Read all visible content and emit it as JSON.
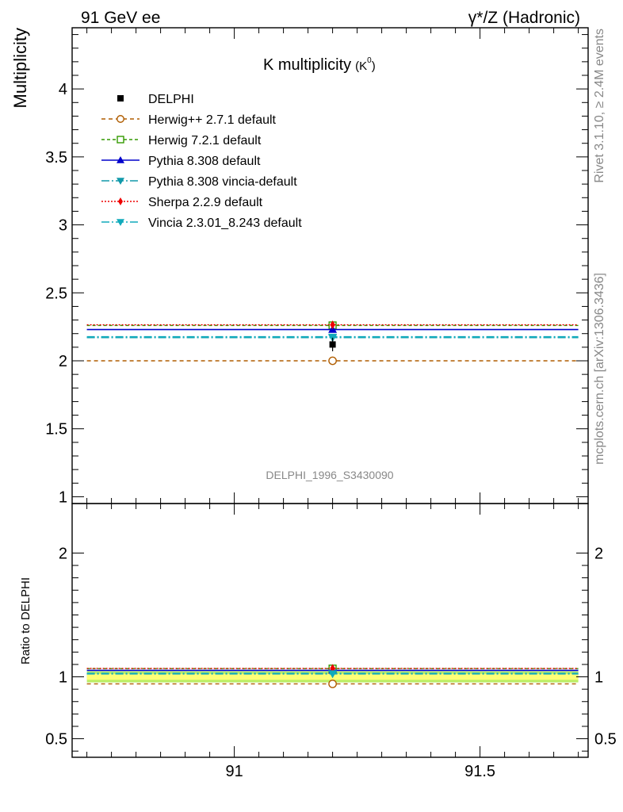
{
  "header": {
    "left": "91 GeV ee",
    "right": "γ*/Z (Hadronic)"
  },
  "side_labels": {
    "rivet": "Rivet 3.1.10, ≥ 2.4M events",
    "mcplots": "mcplots.cern.ch [arXiv:1306.3436]"
  },
  "chart_data": {
    "type": "line",
    "title_main": "K multiplicity",
    "title_sub": "(K",
    "title_sup": "0",
    "title_close": ")",
    "analysis_id": "DELPHI_1996_S3430090",
    "ylabel": "Multiplicity",
    "ratio_ylabel": "Ratio to DELPHI",
    "xlim": [
      90.67,
      91.72
    ],
    "ylim": [
      0.95,
      4.45
    ],
    "ratio_ylim": [
      0.35,
      2.4
    ],
    "x_ticks": [
      91,
      91.5
    ],
    "x_tick_labels": [
      "91",
      "91.5"
    ],
    "y_ticks": [
      1,
      1.5,
      2,
      2.5,
      3,
      3.5,
      4
    ],
    "y_tick_labels": [
      "1",
      "1.5",
      "2",
      "2.5",
      "3",
      "3.5",
      "4"
    ],
    "ratio_ticks": [
      0.5,
      1,
      2
    ],
    "ratio_tick_labels": [
      "0.5",
      "1",
      "2"
    ],
    "bin": [
      90.7,
      91.7
    ],
    "point_x": 91.2,
    "data": {
      "name": "DELPHI",
      "value": 2.12,
      "error": 0.05,
      "color": "#000000"
    },
    "ratio_band": {
      "err_inner": 0.024,
      "err_outer": 0.045,
      "inner_color": "#ffff77",
      "outer_color": "#bbee66"
    },
    "series": [
      {
        "name": "Herwig++ 2.7.1 default",
        "value": 2.0,
        "ratio": 0.943,
        "color": "#b05d00",
        "dash": "5,4",
        "marker": "circle-open",
        "width": 1.4
      },
      {
        "name": "Herwig 7.2.1 default",
        "value": 2.26,
        "ratio": 1.066,
        "color": "#339900",
        "dash": "4,3",
        "marker": "square-open",
        "width": 1.4
      },
      {
        "name": "Pythia 8.308 default",
        "value": 2.23,
        "ratio": 1.052,
        "color": "#0000cc",
        "dash": "",
        "marker": "triangle-up",
        "width": 1.6
      },
      {
        "name": "Pythia 8.308 vincia-default",
        "value": 2.17,
        "ratio": 1.024,
        "color": "#1199aa",
        "dash": "10,3,2,3",
        "marker": "triangle-down",
        "width": 1.4
      },
      {
        "name": "Sherpa 2.2.9 default",
        "value": 2.265,
        "ratio": 1.068,
        "color": "#ee0000",
        "dash": "2,2",
        "marker": "diamond",
        "width": 1.4
      },
      {
        "name": "Vincia 2.3.01_8.243 default",
        "value": 2.175,
        "ratio": 1.026,
        "color": "#11aabb",
        "dash": "10,3,2,3",
        "marker": "triangle-down",
        "width": 2.2
      }
    ]
  }
}
